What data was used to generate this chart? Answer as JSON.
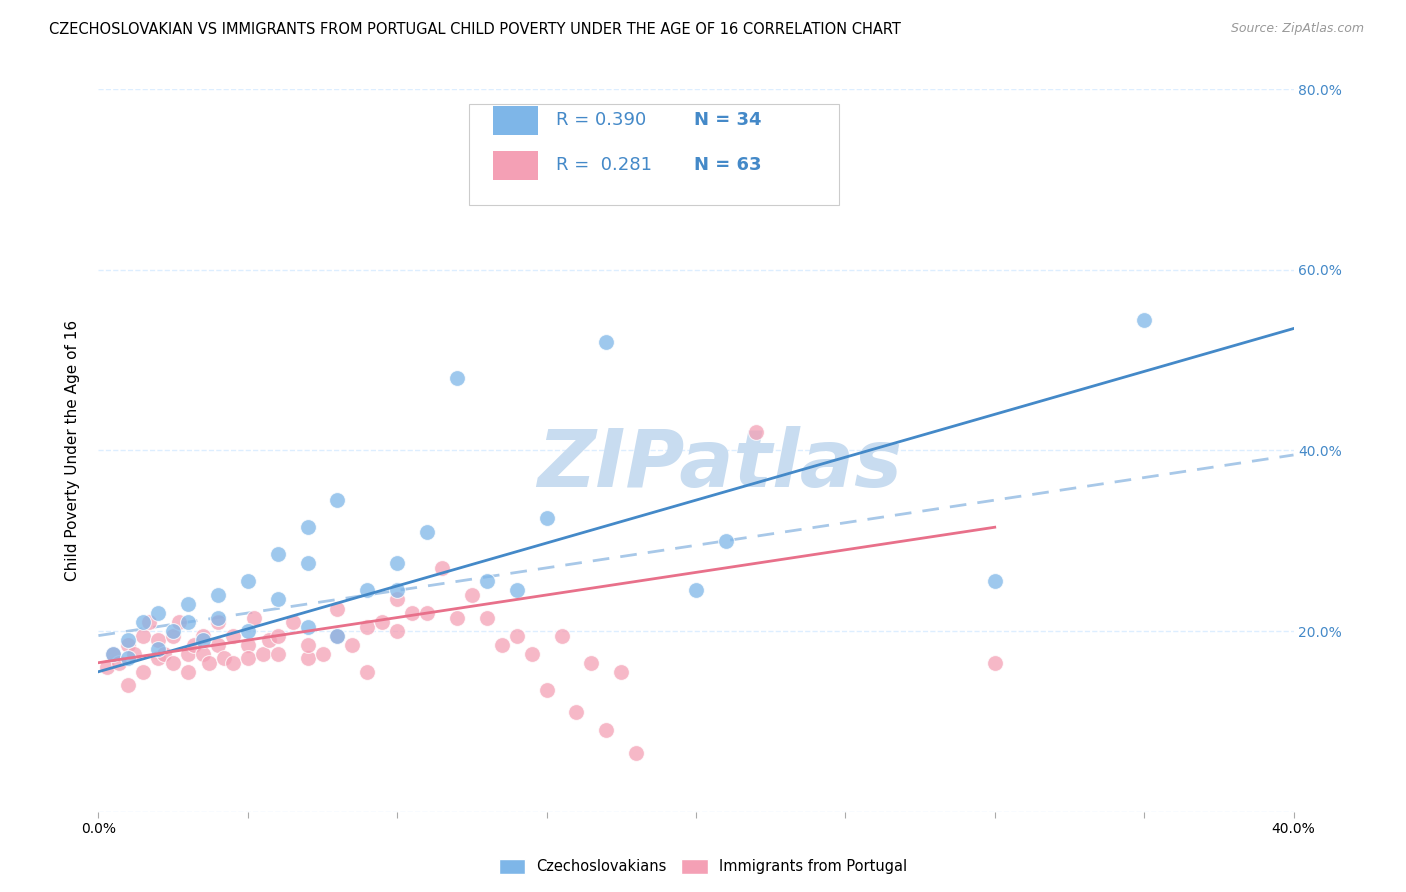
{
  "title": "CZECHOSLOVAKIAN VS IMMIGRANTS FROM PORTUGAL CHILD POVERTY UNDER THE AGE OF 16 CORRELATION CHART",
  "source": "Source: ZipAtlas.com",
  "ylabel": "Child Poverty Under the Age of 16",
  "xlim": [
    0.0,
    0.4
  ],
  "ylim": [
    0.0,
    0.8
  ],
  "x_ticks": [
    0.0,
    0.05,
    0.1,
    0.15,
    0.2,
    0.25,
    0.3,
    0.35,
    0.4
  ],
  "y_ticks": [
    0.0,
    0.2,
    0.4,
    0.6,
    0.8
  ],
  "blue_color": "#7EB6E8",
  "pink_color": "#F4A0B5",
  "blue_line_color": "#4489C8",
  "pink_line_color": "#E8708A",
  "dashed_line_color": "#A8C8E8",
  "watermark_color": "#C8DCF0",
  "legend_R1": "0.390",
  "legend_N1": "34",
  "legend_R2": "0.281",
  "legend_N2": "63",
  "legend_text_color": "#4489C8",
  "blue_scatter_x": [
    0.005,
    0.01,
    0.01,
    0.015,
    0.02,
    0.02,
    0.025,
    0.03,
    0.03,
    0.035,
    0.04,
    0.04,
    0.05,
    0.05,
    0.06,
    0.06,
    0.07,
    0.07,
    0.07,
    0.08,
    0.08,
    0.09,
    0.1,
    0.1,
    0.11,
    0.12,
    0.13,
    0.14,
    0.15,
    0.17,
    0.2,
    0.21,
    0.3,
    0.35
  ],
  "blue_scatter_y": [
    0.175,
    0.17,
    0.19,
    0.21,
    0.18,
    0.22,
    0.2,
    0.21,
    0.23,
    0.19,
    0.215,
    0.24,
    0.255,
    0.2,
    0.285,
    0.235,
    0.205,
    0.315,
    0.275,
    0.345,
    0.195,
    0.245,
    0.275,
    0.245,
    0.31,
    0.48,
    0.255,
    0.245,
    0.325,
    0.52,
    0.245,
    0.3,
    0.255,
    0.545
  ],
  "pink_scatter_x": [
    0.003,
    0.005,
    0.007,
    0.01,
    0.01,
    0.012,
    0.015,
    0.015,
    0.017,
    0.02,
    0.02,
    0.022,
    0.025,
    0.025,
    0.027,
    0.03,
    0.03,
    0.032,
    0.035,
    0.035,
    0.037,
    0.04,
    0.04,
    0.042,
    0.045,
    0.045,
    0.05,
    0.05,
    0.052,
    0.055,
    0.057,
    0.06,
    0.06,
    0.065,
    0.07,
    0.07,
    0.075,
    0.08,
    0.08,
    0.085,
    0.09,
    0.09,
    0.095,
    0.1,
    0.1,
    0.105,
    0.11,
    0.115,
    0.12,
    0.125,
    0.13,
    0.135,
    0.14,
    0.145,
    0.15,
    0.155,
    0.16,
    0.165,
    0.17,
    0.175,
    0.18,
    0.22,
    0.3
  ],
  "pink_scatter_y": [
    0.16,
    0.175,
    0.165,
    0.14,
    0.185,
    0.175,
    0.155,
    0.195,
    0.21,
    0.17,
    0.19,
    0.175,
    0.195,
    0.165,
    0.21,
    0.175,
    0.155,
    0.185,
    0.175,
    0.195,
    0.165,
    0.185,
    0.21,
    0.17,
    0.165,
    0.195,
    0.185,
    0.17,
    0.215,
    0.175,
    0.19,
    0.175,
    0.195,
    0.21,
    0.17,
    0.185,
    0.175,
    0.195,
    0.225,
    0.185,
    0.155,
    0.205,
    0.21,
    0.235,
    0.2,
    0.22,
    0.22,
    0.27,
    0.215,
    0.24,
    0.215,
    0.185,
    0.195,
    0.175,
    0.135,
    0.195,
    0.11,
    0.165,
    0.09,
    0.155,
    0.065,
    0.42,
    0.165
  ],
  "blue_trend_x": [
    0.0,
    0.4
  ],
  "blue_trend_y": [
    0.155,
    0.535
  ],
  "pink_trend_x": [
    0.0,
    0.3
  ],
  "pink_trend_y": [
    0.165,
    0.315
  ],
  "dashed_trend_x": [
    0.0,
    0.4
  ],
  "dashed_trend_y": [
    0.195,
    0.395
  ],
  "background_color": "#FFFFFF",
  "grid_color": "#DDEEFF"
}
